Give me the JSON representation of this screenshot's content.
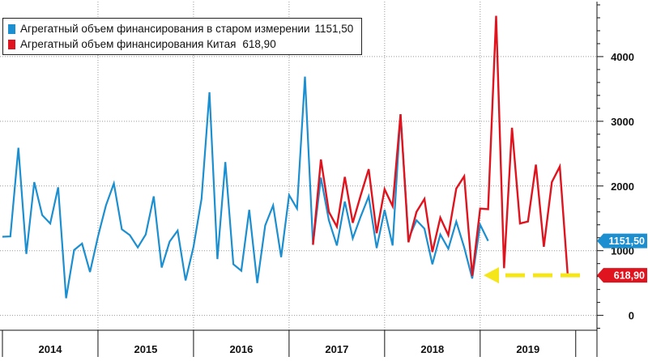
{
  "chart_data": {
    "type": "line",
    "title": "",
    "xlabel": "",
    "ylabel": "",
    "x_labels": [
      "2014",
      "2015",
      "2016",
      "2017",
      "2018",
      "2019"
    ],
    "ylim": [
      -230,
      4850
    ],
    "yticks": [
      0,
      1000,
      2000,
      3000,
      4000
    ],
    "grid": true,
    "legend_position": "top-left",
    "series": [
      {
        "name": "Агрегатный объем финансирования в старом измерении",
        "legend_value": "1151,50",
        "color": "#1b8fd0",
        "start_month": 0,
        "values": [
          1215,
          1220,
          2590,
          950,
          2060,
          1550,
          1420,
          1980,
          265,
          1010,
          1110,
          670,
          1220,
          1700,
          2040,
          1330,
          1240,
          1050,
          1250,
          1840,
          740,
          1140,
          1310,
          540,
          1060,
          1800,
          3450,
          870,
          2370,
          790,
          690,
          1630,
          500,
          1390,
          1700,
          900,
          1860,
          1650,
          3690,
          1100,
          2130,
          1470,
          1080,
          1760,
          1190,
          1530,
          1840,
          1040,
          1630,
          1080,
          3110,
          1180,
          1470,
          1340,
          790,
          1250,
          1030,
          1450,
          1050,
          570,
          1400,
          1151.5
        ]
      },
      {
        "name": "Агрегатный объем финансирования Китая",
        "legend_value": "618,90",
        "color": "#e0141e",
        "start_month": 39,
        "values": [
          1090,
          2410,
          1600,
          1370,
          2140,
          1430,
          1860,
          2260,
          1270,
          1950,
          1690,
          3110,
          1130,
          1600,
          1800,
          980,
          1510,
          1240,
          1960,
          2150,
          610,
          1650,
          1640,
          4630,
          730,
          2900,
          1420,
          1450,
          2330,
          1060,
          2060,
          2300,
          618.9
        ]
      }
    ],
    "annotations": [
      {
        "label": "1151,50",
        "value": 1151.5,
        "color": "#1b8fd0"
      },
      {
        "label": "618,90",
        "value": 618.9,
        "color": "#e0141e"
      }
    ],
    "arrow": {
      "color": "#f5e51b",
      "value": 618.9,
      "style": "dashed",
      "direction": "left"
    }
  }
}
